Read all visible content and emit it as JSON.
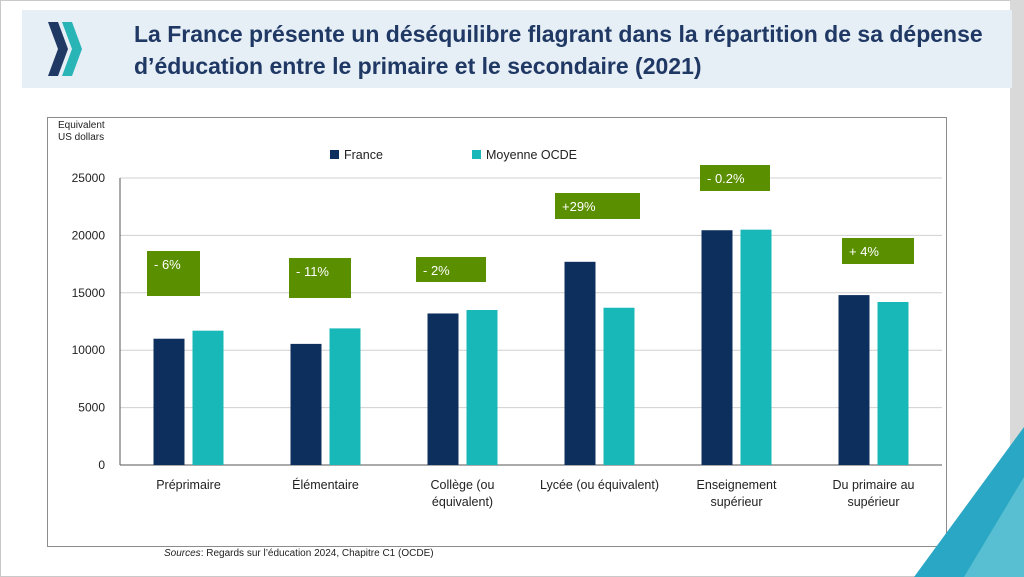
{
  "title": "La France présente un déséquilibre flagrant dans la répartition de sa dépense d’éducation entre le primaire et le secondaire (2021)",
  "logo": {
    "icon": "oecd-logo-icon",
    "colors": [
      "#1f3864",
      "#29b4b6"
    ]
  },
  "source": {
    "prefix": "Sources",
    "text": ": Regards sur l’éducation 2024, Chapitre C1  (OCDE)"
  },
  "colors": {
    "france": "#0d2f5e",
    "oecd": "#18b8b8",
    "annotation": "#5a8f00",
    "title": "#1f3864"
  },
  "chart_data": {
    "type": "bar",
    "ylabel": "Equivalent\nUS dollars",
    "ylim": [
      0,
      25000
    ],
    "yticks": [
      0,
      5000,
      10000,
      15000,
      20000,
      25000
    ],
    "grid": true,
    "legend_position": "top",
    "categories": [
      "Préprimaire",
      "Élémentaire",
      "Collège (ou\néquivalent)",
      "Lycée (ou équivalent)",
      "Enseignement\nsupérieur",
      "Du primaire au\nsupérieur"
    ],
    "series": [
      {
        "name": "France",
        "values": [
          11000,
          10550,
          13200,
          17700,
          20450,
          14800
        ]
      },
      {
        "name": "Moyenne OCDE",
        "values": [
          11700,
          11900,
          13500,
          13700,
          20500,
          14200
        ]
      }
    ],
    "annotations": [
      "- 6%",
      "- 11%",
      "- 2%",
      "+29%",
      "- 0.2%",
      "+ 4%"
    ]
  }
}
